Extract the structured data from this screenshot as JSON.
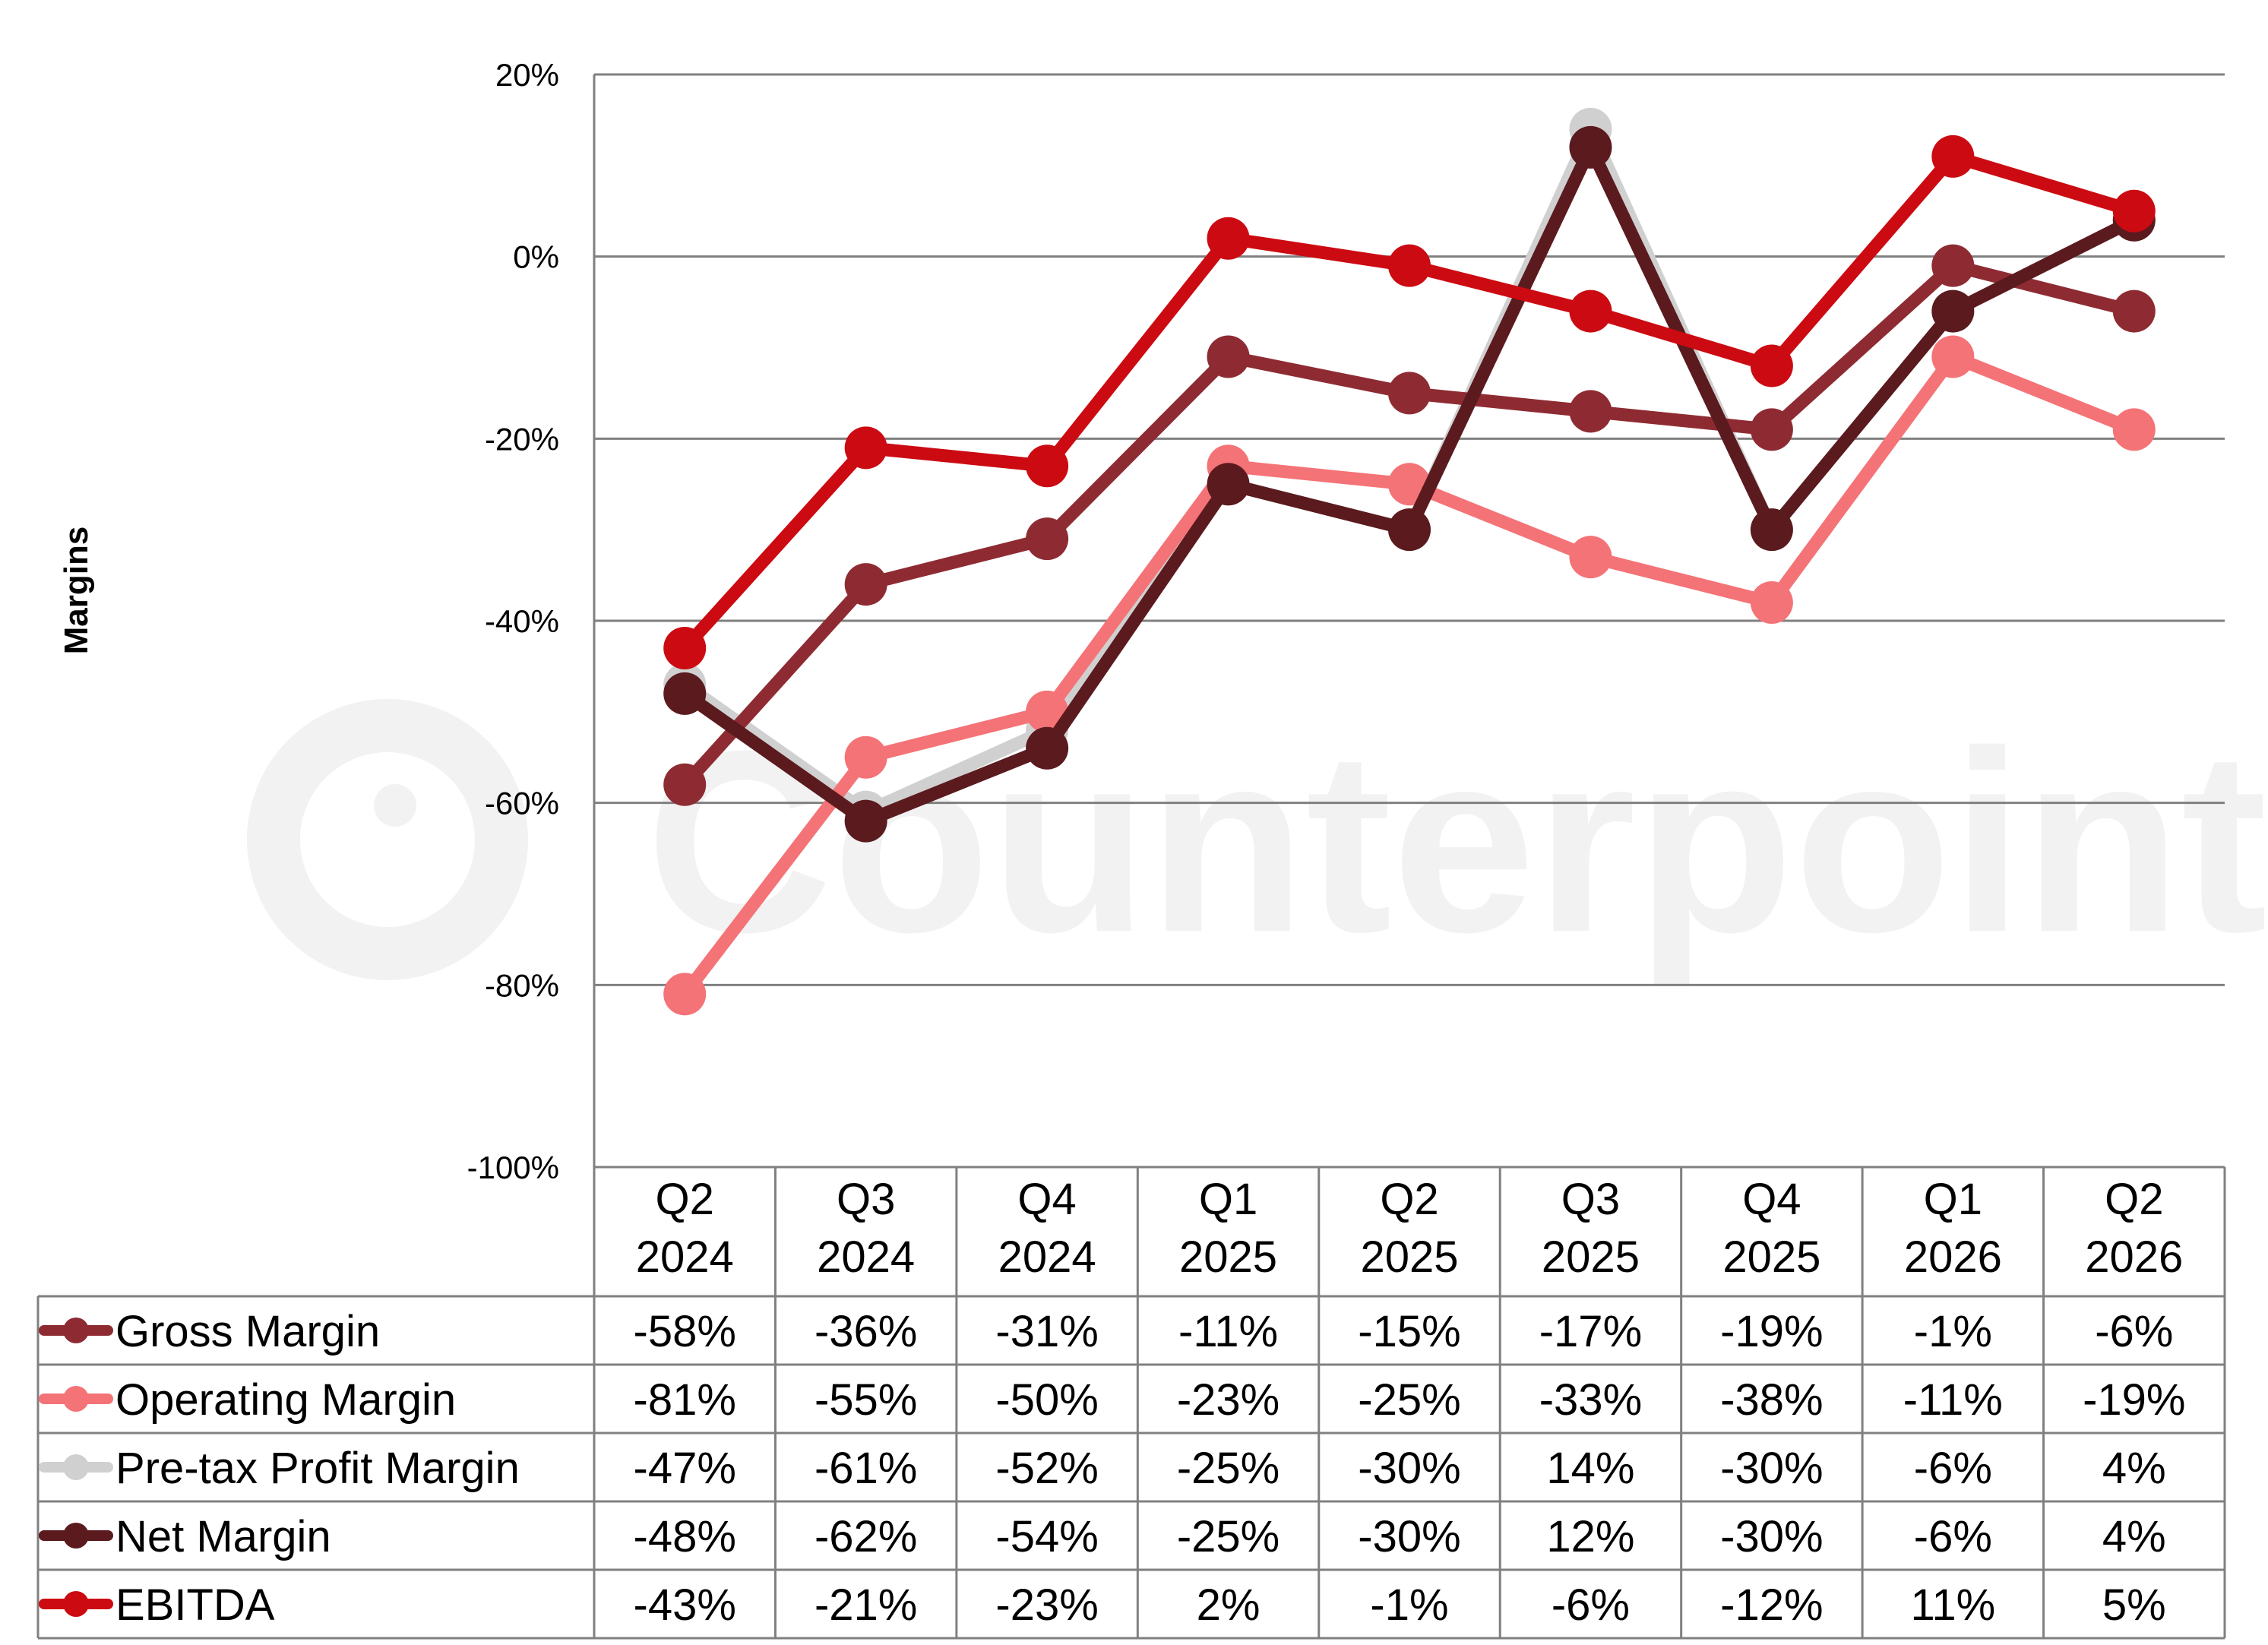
{
  "chart_data": {
    "type": "line",
    "ylabel": "Margins",
    "ylim": [
      -100,
      20
    ],
    "yticks": [
      "20%",
      "0%",
      "-20%",
      "-40%",
      "-60%",
      "-80%",
      "-100%"
    ],
    "categories": [
      [
        "Q2",
        "2024"
      ],
      [
        "Q3",
        "2024"
      ],
      [
        "Q4",
        "2024"
      ],
      [
        "Q1",
        "2025"
      ],
      [
        "Q2",
        "2025"
      ],
      [
        "Q3",
        "2025"
      ],
      [
        "Q4",
        "2025"
      ],
      [
        "Q1",
        "2026"
      ],
      [
        "Q2",
        "2026"
      ]
    ],
    "series": [
      {
        "name": "Gross Margin",
        "color": "#8e2b32",
        "values": [
          -58,
          -36,
          -31,
          -11,
          -15,
          -17,
          -19,
          -1,
          -6
        ],
        "labels": [
          "-58%",
          "-36%",
          "-31%",
          "-11%",
          "-15%",
          "-17%",
          "-19%",
          "-1%",
          "-6%"
        ]
      },
      {
        "name": "Operating Margin",
        "color": "#f47377",
        "values": [
          -81,
          -55,
          -50,
          -23,
          -25,
          -33,
          -38,
          -11,
          -19
        ],
        "labels": [
          "-81%",
          "-55%",
          "-50%",
          "-23%",
          "-25%",
          "-33%",
          "-38%",
          "-11%",
          "-19%"
        ]
      },
      {
        "name": "Pre-tax Profit Margin",
        "color": "#d0d0d0",
        "values": [
          -47,
          -61,
          -52,
          -25,
          -30,
          14,
          -30,
          -6,
          4
        ],
        "labels": [
          "-47%",
          "-61%",
          "-52%",
          "-25%",
          "-30%",
          "14%",
          "-30%",
          "-6%",
          "4%"
        ]
      },
      {
        "name": "Net Margin",
        "color": "#5a1a1e",
        "values": [
          -48,
          -62,
          -54,
          -25,
          -30,
          12,
          -30,
          -6,
          4
        ],
        "labels": [
          "-48%",
          "-62%",
          "-54%",
          "-25%",
          "-30%",
          "12%",
          "-30%",
          "-6%",
          "4%"
        ]
      },
      {
        "name": "EBITDA",
        "color": "#cc0a12",
        "values": [
          -43,
          -21,
          -23,
          2,
          -1,
          -6,
          -12,
          11,
          5
        ],
        "labels": [
          "-43%",
          "-21%",
          "-23%",
          "2%",
          "-1%",
          "-6%",
          "-12%",
          "11%",
          "5%"
        ]
      }
    ],
    "draw_order": [
      2,
      1,
      0,
      3,
      4
    ],
    "grid": true,
    "legend": "data-table"
  },
  "watermark": "Counterpoint"
}
